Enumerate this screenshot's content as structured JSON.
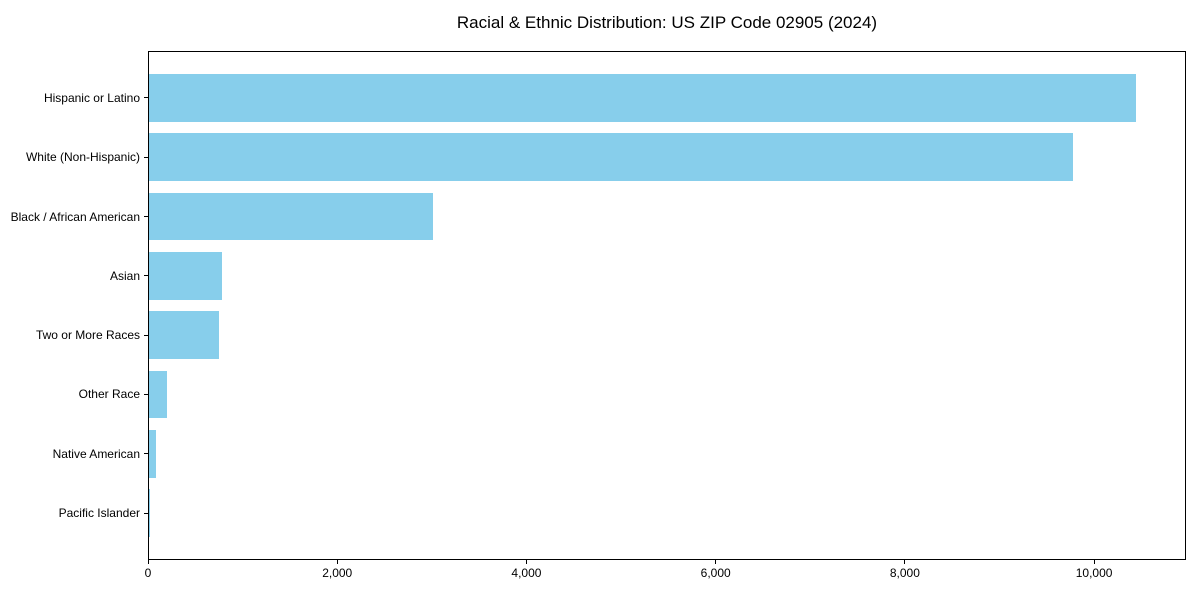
{
  "chart_data": {
    "type": "bar",
    "orientation": "horizontal",
    "title": "Racial & Ethnic Distribution: US ZIP Code 02905 (2024)",
    "categories": [
      "Hispanic or Latino",
      "White (Non-Hispanic)",
      "Black / African American",
      "Asian",
      "Two or More Races",
      "Other Race",
      "Native American",
      "Pacific Islander"
    ],
    "values": [
      10430,
      9770,
      3000,
      770,
      745,
      195,
      70,
      10
    ],
    "xlabel": "",
    "ylabel": "",
    "xlim": [
      0,
      10950
    ],
    "xticks": [
      0,
      2000,
      4000,
      6000,
      8000,
      10000
    ],
    "xtick_labels": [
      "0",
      "2,000",
      "4,000",
      "6,000",
      "8,000",
      "10,000"
    ],
    "bar_color": "#87CEEB",
    "grid": false,
    "legend": "none"
  }
}
